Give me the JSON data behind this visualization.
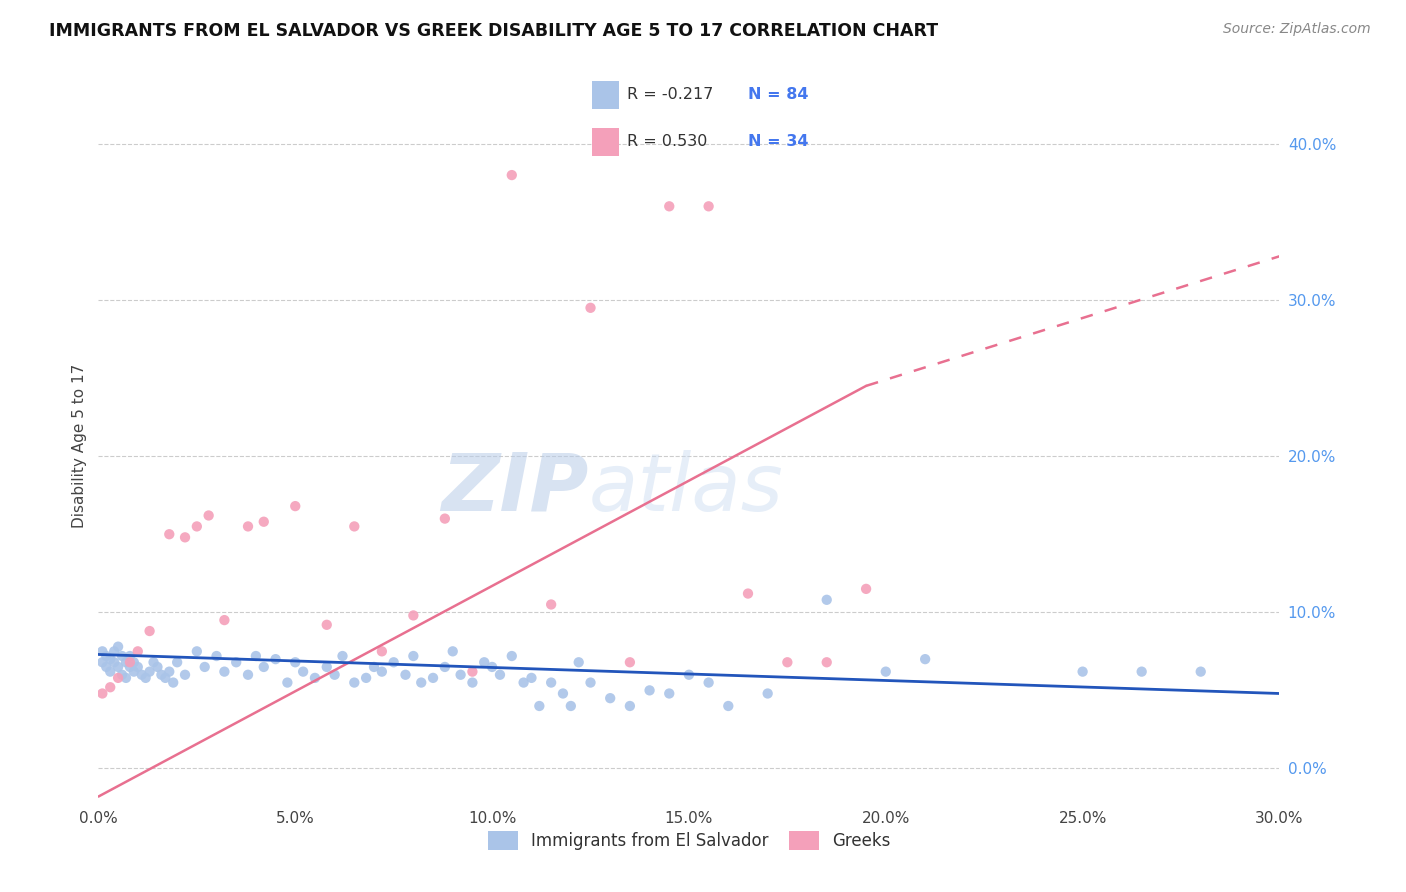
{
  "title": "IMMIGRANTS FROM EL SALVADOR VS GREEK DISABILITY AGE 5 TO 17 CORRELATION CHART",
  "source": "Source: ZipAtlas.com",
  "ylabel": "Disability Age 5 to 17",
  "xlim": [
    0.0,
    0.3
  ],
  "ylim": [
    -0.022,
    0.435
  ],
  "xticks": [
    0.0,
    0.05,
    0.1,
    0.15,
    0.2,
    0.25,
    0.3
  ],
  "yticks_right": [
    0.0,
    0.1,
    0.2,
    0.3,
    0.4
  ],
  "blue_R": "-0.217",
  "blue_N": "84",
  "pink_R": "0.530",
  "pink_N": "34",
  "blue_color": "#aac4e8",
  "pink_color": "#f4a0ba",
  "blue_line_color": "#2255bb",
  "pink_line_color": "#e87090",
  "watermark_zip": "ZIP",
  "watermark_atlas": "atlas",
  "legend_label_blue": "Immigrants from El Salvador",
  "legend_label_pink": "Greeks",
  "blue_scatter_x": [
    0.001,
    0.001,
    0.002,
    0.002,
    0.003,
    0.003,
    0.004,
    0.004,
    0.005,
    0.005,
    0.006,
    0.006,
    0.007,
    0.007,
    0.008,
    0.008,
    0.009,
    0.009,
    0.01,
    0.011,
    0.012,
    0.013,
    0.014,
    0.015,
    0.016,
    0.017,
    0.018,
    0.019,
    0.02,
    0.022,
    0.025,
    0.027,
    0.03,
    0.032,
    0.035,
    0.038,
    0.04,
    0.042,
    0.045,
    0.048,
    0.05,
    0.052,
    0.055,
    0.058,
    0.06,
    0.062,
    0.065,
    0.068,
    0.07,
    0.072,
    0.075,
    0.078,
    0.08,
    0.082,
    0.085,
    0.088,
    0.09,
    0.092,
    0.095,
    0.098,
    0.1,
    0.102,
    0.105,
    0.108,
    0.11,
    0.112,
    0.115,
    0.118,
    0.12,
    0.122,
    0.125,
    0.13,
    0.135,
    0.14,
    0.145,
    0.15,
    0.155,
    0.16,
    0.17,
    0.185,
    0.2,
    0.21,
    0.25,
    0.265,
    0.28
  ],
  "blue_scatter_y": [
    0.075,
    0.068,
    0.072,
    0.065,
    0.07,
    0.062,
    0.075,
    0.068,
    0.078,
    0.065,
    0.072,
    0.06,
    0.068,
    0.058,
    0.065,
    0.072,
    0.062,
    0.068,
    0.065,
    0.06,
    0.058,
    0.062,
    0.068,
    0.065,
    0.06,
    0.058,
    0.062,
    0.055,
    0.068,
    0.06,
    0.075,
    0.065,
    0.072,
    0.062,
    0.068,
    0.06,
    0.072,
    0.065,
    0.07,
    0.055,
    0.068,
    0.062,
    0.058,
    0.065,
    0.06,
    0.072,
    0.055,
    0.058,
    0.065,
    0.062,
    0.068,
    0.06,
    0.072,
    0.055,
    0.058,
    0.065,
    0.075,
    0.06,
    0.055,
    0.068,
    0.065,
    0.06,
    0.072,
    0.055,
    0.058,
    0.04,
    0.055,
    0.048,
    0.04,
    0.068,
    0.055,
    0.045,
    0.04,
    0.05,
    0.048,
    0.06,
    0.055,
    0.04,
    0.048,
    0.108,
    0.062,
    0.07,
    0.062,
    0.062,
    0.062
  ],
  "pink_scatter_x": [
    0.001,
    0.003,
    0.005,
    0.008,
    0.01,
    0.013,
    0.018,
    0.022,
    0.025,
    0.028,
    0.032,
    0.038,
    0.042,
    0.05,
    0.058,
    0.065,
    0.072,
    0.08,
    0.088,
    0.095,
    0.105,
    0.115,
    0.125,
    0.135,
    0.145,
    0.155,
    0.165,
    0.175,
    0.185,
    0.195
  ],
  "pink_scatter_y": [
    0.048,
    0.052,
    0.058,
    0.068,
    0.075,
    0.088,
    0.15,
    0.148,
    0.155,
    0.162,
    0.095,
    0.155,
    0.158,
    0.168,
    0.092,
    0.155,
    0.075,
    0.098,
    0.16,
    0.062,
    0.38,
    0.105,
    0.295,
    0.068,
    0.36,
    0.36,
    0.112,
    0.068,
    0.068,
    0.115
  ],
  "pink_line_x0": 0.0,
  "pink_line_y0": -0.018,
  "pink_line_x1": 0.195,
  "pink_line_y1": 0.245,
  "pink_line_dash_x0": 0.195,
  "pink_line_dash_y0": 0.245,
  "pink_line_dash_x1": 0.3,
  "pink_line_dash_y1": 0.328,
  "blue_line_x0": 0.0,
  "blue_line_y0": 0.073,
  "blue_line_x1": 0.3,
  "blue_line_y1": 0.048
}
